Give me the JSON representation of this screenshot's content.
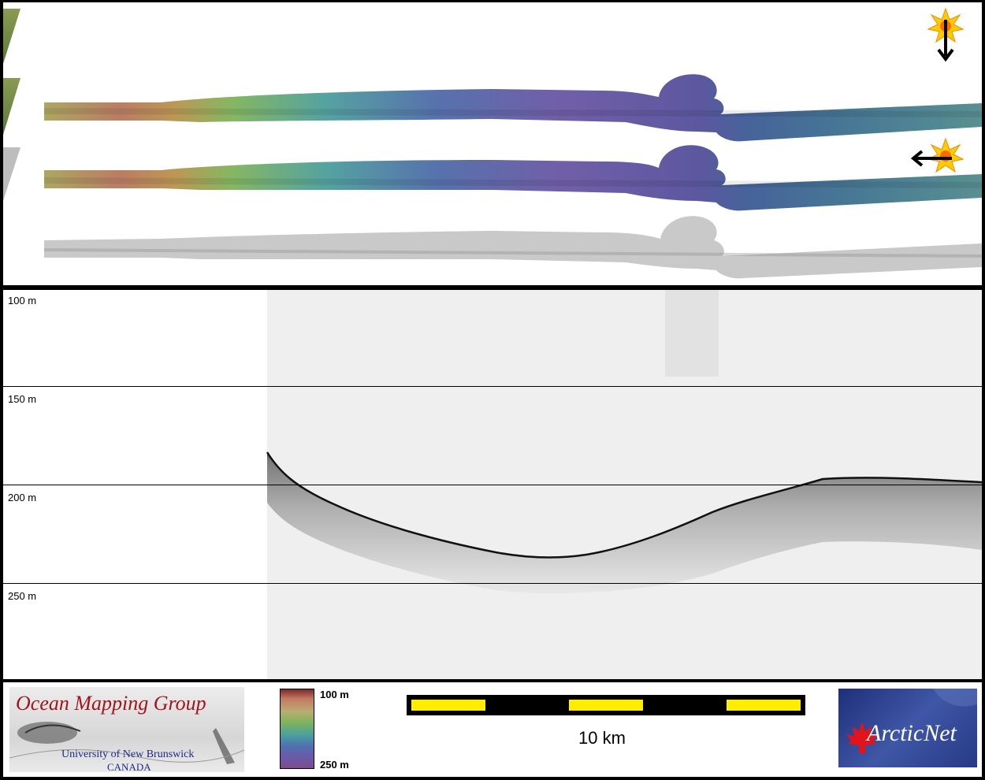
{
  "profile": {
    "depth_labels": [
      "100 m",
      "150 m",
      "200 m",
      "250 m"
    ]
  },
  "legend": {
    "organization_title": "Ocean Mapping Group",
    "organization_university": "University of New Brunswick",
    "organization_country": "CANADA",
    "colorbar_top": "100 m",
    "colorbar_bottom": "250 m",
    "scale_label": "10 km",
    "partner_logo": "ArcticNet"
  },
  "icons": {
    "sun_down": "sun-illumination-icon",
    "sun_left": "sun-illumination-icon"
  },
  "colors": {
    "panel_bg": "#ffffff",
    "frame": "#000000",
    "scale_yellow": "#ffee00",
    "omg_red": "#a0141c",
    "omg_blue": "#1d2a86"
  }
}
